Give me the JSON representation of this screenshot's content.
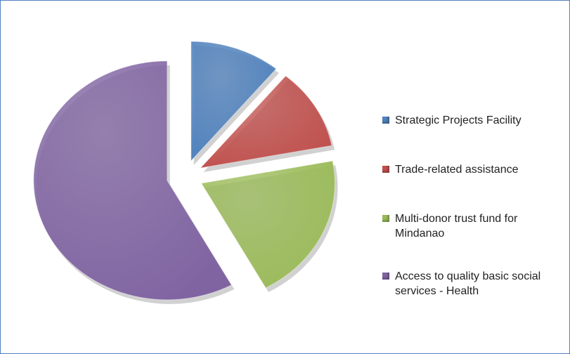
{
  "chart_data": {
    "type": "pie",
    "categories": [
      "Strategic Projects Facility",
      "Trade-related assistance",
      "Multi-donor trust fund for Mindanao",
      "Access to quality basic social services - Health"
    ],
    "values": [
      11,
      11,
      20,
      58
    ],
    "colors": [
      "#4f81bd",
      "#c0504d",
      "#9bbb59",
      "#8064a2"
    ],
    "legend": "right"
  }
}
